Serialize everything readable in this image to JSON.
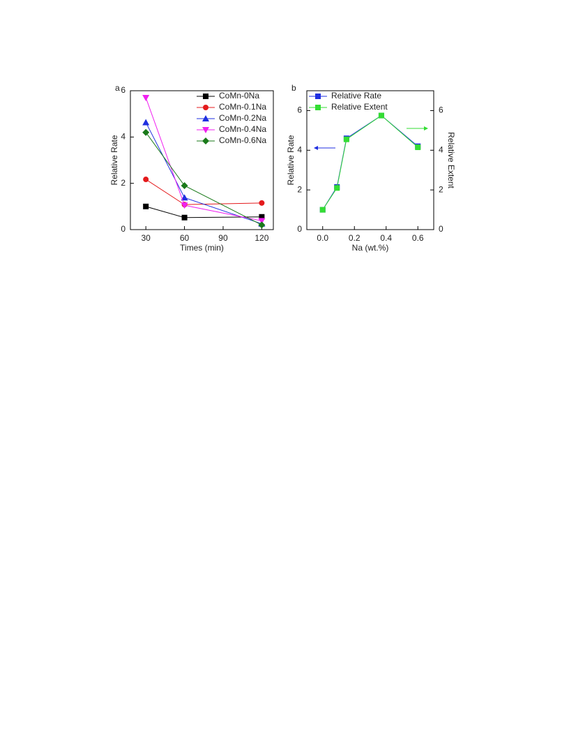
{
  "chart_data": [
    {
      "type": "line",
      "panel_label": "a",
      "xlabel": "Times (min)",
      "ylabel": "Relative Rate",
      "x": [
        30,
        60,
        120
      ],
      "xlim": [
        18,
        129
      ],
      "xticks": [
        30,
        60,
        90,
        120
      ],
      "ylim": [
        0,
        6
      ],
      "yticks": [
        0,
        2,
        4,
        6
      ],
      "legend": "upper right",
      "series": [
        {
          "name": "CoMn-0Na",
          "color": "#000000",
          "marker": "s",
          "values": [
            1.0,
            0.52,
            0.55
          ]
        },
        {
          "name": "CoMn-0.1Na",
          "color": "#e41a1c",
          "marker": "o",
          "values": [
            2.17,
            1.08,
            1.15
          ]
        },
        {
          "name": "CoMn-0.2Na",
          "color": "#1f2fe0",
          "marker": "^",
          "values": [
            4.63,
            1.38,
            0.25
          ]
        },
        {
          "name": "CoMn-0.4Na",
          "color": "#f020f0",
          "marker": "v",
          "values": [
            5.7,
            1.05,
            0.38
          ]
        },
        {
          "name": "CoMn-0.6Na",
          "color": "#1a7a1a",
          "marker": "D",
          "values": [
            4.2,
            1.9,
            0.2
          ]
        }
      ]
    },
    {
      "type": "line",
      "panel_label": "b",
      "xlabel": "Na (wt.%)",
      "ylabel": "Relative Rate",
      "y2label": "Relative Extent",
      "x": [
        0,
        0.09,
        0.15,
        0.37,
        0.6
      ],
      "xlim": [
        -0.1,
        0.7
      ],
      "xticks": [
        {
          "value": 0,
          "label": "0.0"
        },
        0.2,
        0.4,
        0.6
      ],
      "ylim": [
        0,
        7
      ],
      "yticks": [
        0,
        2,
        4,
        6
      ],
      "y2lim": [
        0,
        7
      ],
      "y2ticks": [
        0,
        2,
        4,
        6
      ],
      "legend": "upper left",
      "series": [
        {
          "name": "Relative Rate",
          "color": "#1f2fe0",
          "marker": "s",
          "values": [
            1.0,
            2.15,
            4.6,
            5.75,
            4.2
          ]
        },
        {
          "name": "Relative Extent",
          "color": "#33dd33",
          "marker": "s",
          "axis": "y2",
          "values": [
            1.0,
            2.1,
            4.55,
            5.75,
            4.15
          ]
        }
      ]
    }
  ]
}
